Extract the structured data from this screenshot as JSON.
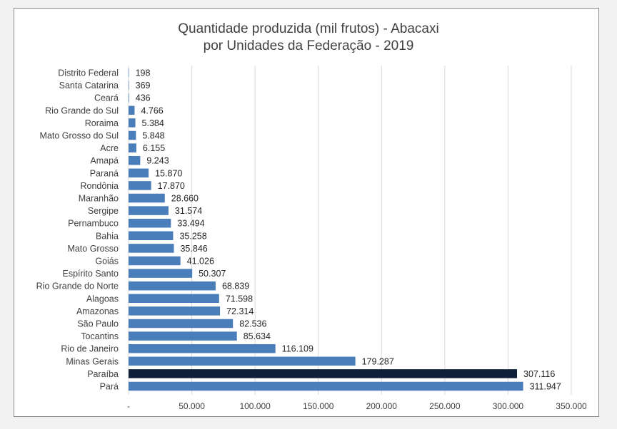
{
  "chart_data": {
    "type": "bar",
    "orientation": "horizontal",
    "title_lines": [
      "Quantidade produzida (mil frutos) - Abacaxi",
      "por Unidades da Federação - 2019"
    ],
    "xlabel": "",
    "ylabel": "",
    "xlim": [
      0,
      350000
    ],
    "x_ticks": [
      0,
      50000,
      100000,
      150000,
      200000,
      250000,
      300000,
      350000
    ],
    "x_tick_labels": [
      "-",
      "50.000",
      "100.000",
      "150.000",
      "200.000",
      "250.000",
      "300.000",
      "350.000"
    ],
    "grid": "vertical",
    "legend": "none",
    "categories": [
      "Distrito Federal",
      "Santa Catarina",
      "Ceará",
      "Rio Grande do Sul",
      "Roraima",
      "Mato Grosso do Sul",
      "Acre",
      "Amapá",
      "Paraná",
      "Rondônia",
      "Maranhão",
      "Sergipe",
      "Pernambuco",
      "Bahia",
      "Mato Grosso",
      "Goiás",
      "Espírito Santo",
      "Rio Grande do Norte",
      "Alagoas",
      "Amazonas",
      "São Paulo",
      "Tocantins",
      "Rio de Janeiro",
      "Minas Gerais",
      "Paraíba",
      "Pará"
    ],
    "values": [
      198,
      369,
      436,
      4766,
      5384,
      5848,
      6155,
      9243,
      15870,
      17870,
      28660,
      31574,
      33494,
      35258,
      35846,
      41026,
      50307,
      68839,
      71598,
      72314,
      82536,
      85634,
      116109,
      179287,
      307116,
      311947
    ],
    "value_labels": [
      "198",
      "369",
      "436",
      "4.766",
      "5.384",
      "5.848",
      "6.155",
      "9.243",
      "15.870",
      "17.870",
      "28.660",
      "31.574",
      "33.494",
      "35.258",
      "35.846",
      "41.026",
      "50.307",
      "68.839",
      "71.598",
      "72.314",
      "82.536",
      "85.634",
      "116.109",
      "179.287",
      "307.116",
      "311.947"
    ],
    "colors": {
      "bar": "#4a7ebb",
      "highlight": "#0f1f38",
      "gridline": "#d9d9d9"
    },
    "highlight_category": "Paraíba"
  }
}
